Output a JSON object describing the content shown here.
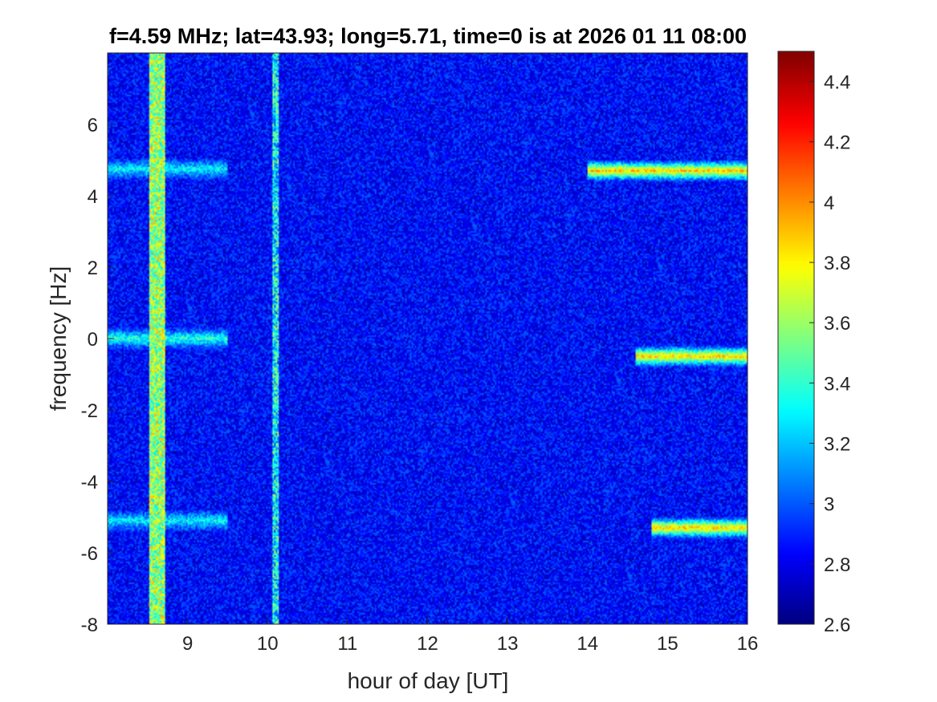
{
  "chart_data": {
    "type": "heatmap",
    "title": "f=4.59 MHz;  lat=43.93; long=5.71, time=0 is at 2026 01 11 08:00",
    "xlabel": "hour of day [UT]",
    "ylabel": "frequency [Hz]",
    "xlim": [
      8.0,
      16.0
    ],
    "ylim": [
      -8,
      8
    ],
    "x_ticks": [
      9,
      10,
      11,
      12,
      13,
      14,
      15,
      16
    ],
    "y_ticks": [
      -8,
      -6,
      -4,
      -2,
      0,
      2,
      4,
      6
    ],
    "colorbar": {
      "clim": [
        2.6,
        4.5
      ],
      "ticks": [
        2.6,
        2.8,
        3,
        3.2,
        3.4,
        3.6,
        3.8,
        4,
        4.2,
        4.4
      ],
      "colormap": "jet"
    },
    "background_level": 2.85,
    "features": [
      {
        "kind": "vertical_band",
        "x_start": 8.53,
        "x_end": 8.72,
        "level": 3.6
      },
      {
        "kind": "vertical_band",
        "x_start": 10.07,
        "x_end": 10.13,
        "level": 3.3
      },
      {
        "kind": "horizontal_trace",
        "y": 0,
        "x_start": 8.0,
        "x_end": 9.5,
        "level": 3.4
      },
      {
        "kind": "horizontal_trace",
        "y": 4.75,
        "x_start": 8.0,
        "x_end": 9.5,
        "level": 3.3
      },
      {
        "kind": "horizontal_trace",
        "y": -5.1,
        "x_start": 8.0,
        "x_end": 9.5,
        "level": 3.3
      },
      {
        "kind": "horizontal_trace",
        "y": 4.7,
        "x_start": 14.0,
        "x_end": 16.0,
        "level": 3.9
      },
      {
        "kind": "horizontal_trace",
        "y": -0.5,
        "x_start": 14.6,
        "x_end": 16.0,
        "level": 3.9
      },
      {
        "kind": "horizontal_trace",
        "y": -5.3,
        "x_start": 14.8,
        "x_end": 16.0,
        "level": 3.9
      }
    ]
  }
}
